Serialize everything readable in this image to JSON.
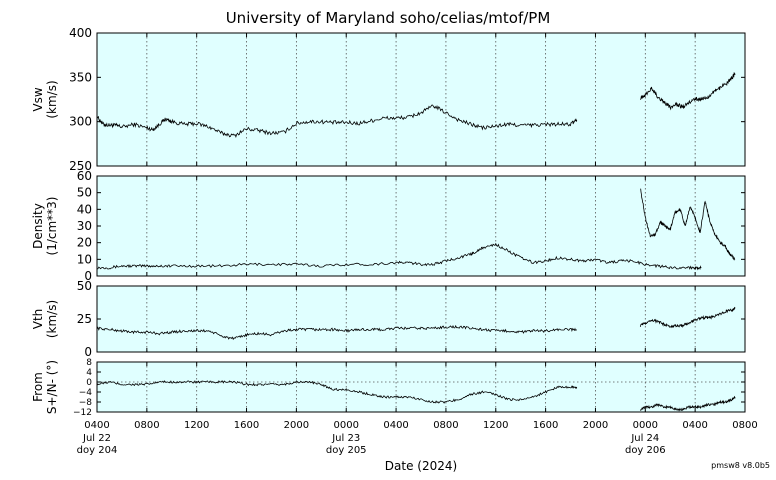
{
  "title": "University of Maryland  soho/celias/mtof/PM",
  "version_tag": "pmsw8 v8.0b5",
  "xlabel": "Date (2024)",
  "colors": {
    "panel_bg": "#e0ffff",
    "trace": "#000000",
    "grid": "#555555"
  },
  "chart_data": [
    {
      "type": "line",
      "ylabel": [
        "Vsw",
        "(km/s)"
      ],
      "ylim": [
        250,
        400
      ],
      "yticks": [
        250,
        300,
        350,
        400
      ],
      "series": [
        {
          "x": [
            0,
            0.5,
            1,
            1.5,
            2,
            3,
            4,
            4.5,
            5,
            5.5,
            6,
            7,
            8,
            9,
            10,
            11,
            12,
            13,
            14,
            15,
            16,
            17,
            18,
            19,
            20,
            21,
            22,
            23,
            24,
            25,
            26,
            27,
            28,
            29,
            30,
            31,
            32,
            33,
            34,
            35,
            36,
            37,
            38,
            38.5
          ],
          "y": [
            306,
            297,
            296,
            296,
            294,
            297,
            293,
            291,
            297,
            303,
            300,
            297,
            298,
            294,
            287,
            284,
            292,
            290,
            287,
            288,
            298,
            300,
            300,
            299,
            299,
            298,
            301,
            304,
            304,
            305,
            310,
            318,
            310,
            302,
            297,
            293,
            295,
            297,
            296,
            296,
            297,
            297,
            297,
            302
          ]
        },
        {
          "x": [
            43.6,
            44.0,
            44.5,
            45,
            45.5,
            46,
            46.5,
            47,
            47.5,
            48,
            48.5,
            49,
            49.5,
            50,
            50.5,
            51,
            51.2
          ],
          "y": [
            327,
            330,
            338,
            328,
            322,
            316,
            320,
            316,
            322,
            326,
            325,
            328,
            334,
            338,
            343,
            350,
            354
          ]
        }
      ]
    },
    {
      "type": "line",
      "ylabel": [
        "Density",
        "(1/cm**3)"
      ],
      "ylim": [
        0,
        60
      ],
      "yticks": [
        0,
        10,
        20,
        30,
        40,
        50,
        60
      ],
      "series": [
        {
          "x": [
            0,
            1,
            2,
            3,
            4,
            5,
            6,
            8,
            10,
            12,
            14,
            16,
            18,
            20,
            22,
            24,
            25,
            26,
            27,
            28,
            29,
            30,
            30.5,
            31,
            32,
            33,
            34,
            35,
            36,
            37,
            38,
            39,
            40,
            41,
            42,
            43,
            44,
            45,
            46,
            47,
            48,
            48.5
          ],
          "y": [
            5,
            5,
            6,
            6,
            6,
            6,
            6,
            6,
            6,
            7,
            7,
            7,
            6,
            7,
            7,
            8,
            8,
            7,
            7,
            9,
            11,
            13,
            15,
            17,
            19,
            15,
            11,
            8,
            9,
            11,
            10,
            9,
            10,
            8,
            9,
            9,
            7,
            6,
            5,
            5,
            5,
            5
          ]
        },
        {
          "x": [
            0,
            0.4,
            0.8,
            1.2,
            1.6,
            2,
            2.4,
            2.8,
            3.2,
            3.6,
            4,
            4.4,
            4.8,
            5.2,
            5.6,
            6,
            6.4,
            6.8,
            7,
            7.2,
            7.6
          ],
          "y": [
            53,
            35,
            24,
            25,
            32,
            30,
            28,
            38,
            40,
            30,
            42,
            35,
            26,
            45,
            32,
            25,
            20,
            18,
            15,
            13,
            10
          ]
        }
      ]
    },
    {
      "type": "line",
      "ylabel": [
        "Vth",
        "(km/s)"
      ],
      "ylim": [
        0,
        50
      ],
      "yticks": [
        0,
        25,
        50
      ],
      "series": [
        {
          "x": [
            0,
            1,
            2,
            3,
            4,
            5,
            6,
            7,
            8,
            9,
            10,
            11,
            12,
            13,
            14,
            15,
            16,
            17,
            18,
            19,
            20,
            21,
            22,
            23,
            24,
            25,
            26,
            27,
            28,
            29,
            30,
            31,
            32,
            33,
            34,
            35,
            36,
            37,
            38,
            38.5
          ],
          "y": [
            18,
            17,
            16,
            15,
            15,
            14,
            15,
            16,
            16,
            16,
            12,
            10,
            13,
            14,
            13,
            16,
            17,
            17,
            17,
            17,
            16,
            17,
            17,
            17,
            18,
            18,
            18,
            18,
            19,
            19,
            18,
            17,
            16,
            16,
            15,
            16,
            16,
            17,
            17,
            17
          ]
        },
        {
          "x": [
            43.6,
            44,
            44.5,
            45,
            45.5,
            46,
            46.5,
            47,
            47.5,
            48,
            48.5,
            49,
            49.5,
            50,
            50.5,
            51,
            51.2
          ],
          "y": [
            20,
            22,
            24,
            23,
            21,
            19,
            20,
            20,
            22,
            24,
            26,
            26,
            27,
            29,
            31,
            32,
            33
          ]
        }
      ]
    },
    {
      "type": "line",
      "ylabel": [
        "From",
        "S+/N- (°)"
      ],
      "ylim": [
        -12,
        8
      ],
      "yticks": [
        -12,
        -8,
        -4,
        0,
        4,
        8
      ],
      "reference_line": 0,
      "series": [
        {
          "x": [
            0,
            1,
            2,
            3,
            4,
            5,
            6,
            7,
            8,
            9,
            10,
            11,
            12,
            13,
            14,
            15,
            16,
            17,
            18,
            19,
            20,
            21,
            22,
            23,
            24,
            25,
            26,
            27,
            28,
            29,
            30,
            31,
            32,
            33,
            34,
            35,
            36,
            37,
            38,
            38.5
          ],
          "y": [
            -1,
            0,
            -1,
            -1,
            -1,
            0,
            0,
            0,
            0,
            0,
            0,
            0,
            -1,
            -1,
            -1,
            -1,
            0,
            0,
            -1,
            -3,
            -3,
            -4,
            -5,
            -6,
            -6,
            -6,
            -7,
            -8,
            -8,
            -7,
            -5,
            -4,
            -5,
            -7,
            -7,
            -6,
            -4,
            -2,
            -2,
            -2
          ]
        },
        {
          "x": [
            43.6,
            44,
            44.5,
            45,
            45.5,
            46,
            46.5,
            47,
            47.5,
            48,
            48.5,
            49,
            49.5,
            50,
            50.5,
            51,
            51.2
          ],
          "y": [
            -11,
            -10,
            -10,
            -9,
            -10,
            -10,
            -11,
            -11,
            -10,
            -10,
            -10,
            -9,
            -9,
            -8,
            -8,
            -7,
            -6
          ]
        }
      ]
    }
  ],
  "x_axis": {
    "unit": "hours since 2024-07-22 04:00",
    "range": [
      0,
      52
    ],
    "tick_labels": [
      "0400",
      "0800",
      "1200",
      "1600",
      "2000",
      "0000",
      "0400",
      "0800",
      "1200",
      "1600",
      "2000",
      "0000",
      "0400",
      "0800"
    ],
    "day_labels": [
      {
        "tick_index": 0,
        "date": "Jul 22",
        "doy": "doy 204"
      },
      {
        "tick_index": 5,
        "date": "Jul 23",
        "doy": "doy 205"
      },
      {
        "tick_index": 11,
        "date": "Jul 24",
        "doy": "doy 206"
      }
    ]
  }
}
